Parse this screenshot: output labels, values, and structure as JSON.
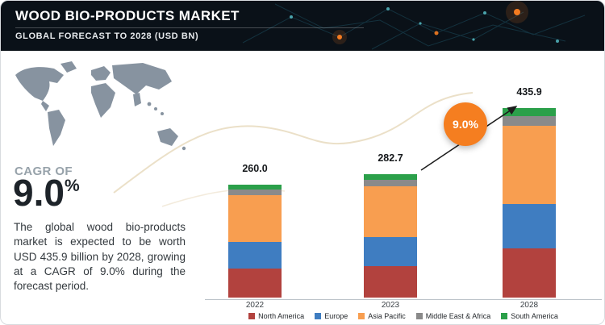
{
  "header": {
    "title": "WOOD BIO-PRODUCTS MARKET",
    "subtitle": "GLOBAL FORECAST TO 2028 (USD BN)"
  },
  "sidebar": {
    "cagr_label": "CAGR OF",
    "cagr_value": "9.0",
    "cagr_percent_sign": "%",
    "description": "The global wood bio-products market is expected to be worth USD 435.9 billion by 2028, growing at a CAGR of 9.0% during the forecast period."
  },
  "chart_data": {
    "type": "bar",
    "stacked": true,
    "categories": [
      "2022",
      "2023",
      "2028"
    ],
    "totals": [
      260.0,
      282.7,
      435.9
    ],
    "series": [
      {
        "name": "North America",
        "color": "#b2423e",
        "values": [
          67.0,
          73.0,
          113.0
        ]
      },
      {
        "name": "Europe",
        "color": "#3f7dc1",
        "values": [
          61.0,
          66.0,
          102.0
        ]
      },
      {
        "name": "Asia Pacific",
        "color": "#f89e50",
        "values": [
          107.0,
          116.5,
          179.0
        ]
      },
      {
        "name": "Middle East & Africa",
        "color": "#8a8a8a",
        "values": [
          13.0,
          14.2,
          22.0
        ]
      },
      {
        "name": "South America",
        "color": "#2ba04a",
        "values": [
          12.0,
          13.0,
          19.9
        ]
      }
    ],
    "annotation": {
      "label": "9.0%",
      "color": "#f57e20"
    },
    "ylim": [
      0,
      460
    ],
    "legend_position": "bottom",
    "x_axis_unit": "year",
    "value_unit": "USD BN"
  }
}
